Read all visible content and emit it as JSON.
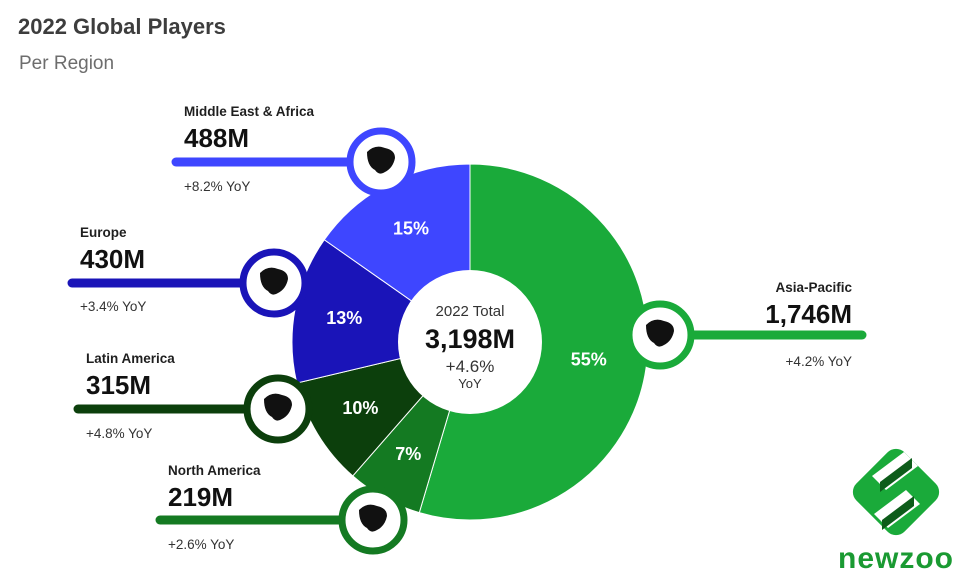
{
  "title": "2022 Global Players",
  "subtitle": "Per Region",
  "center": {
    "label": "2022 Total",
    "value": "3,198M",
    "growth": "+4.6%",
    "growth_unit": "YoY"
  },
  "brand": "newzoo",
  "colors": {
    "Asia-Pacific": "#1aaa3a",
    "North America": "#147a22",
    "Latin America": "#0c3f0c",
    "Europe": "#1a14b8",
    "Middle East & Africa": "#3e46ff"
  },
  "chart_data": {
    "type": "pie",
    "title": "2022 Global Players",
    "subtitle": "Per Region",
    "categories": [
      "Asia-Pacific",
      "North America",
      "Latin America",
      "Europe",
      "Middle East & Africa"
    ],
    "values": [
      1746,
      219,
      315,
      430,
      488
    ],
    "unit": "M",
    "value_labels": [
      "1,746M",
      "219M",
      "315M",
      "430M",
      "488M"
    ],
    "percent_labels": [
      "55%",
      "7%",
      "10%",
      "13%",
      "15%"
    ],
    "yoy_labels": [
      "+4.2% YoY",
      "+2.6% YoY",
      "+4.8% YoY",
      "+3.4% YoY",
      "+8.2% YoY"
    ],
    "total": "3,198M",
    "total_growth": "+4.6% YoY"
  }
}
